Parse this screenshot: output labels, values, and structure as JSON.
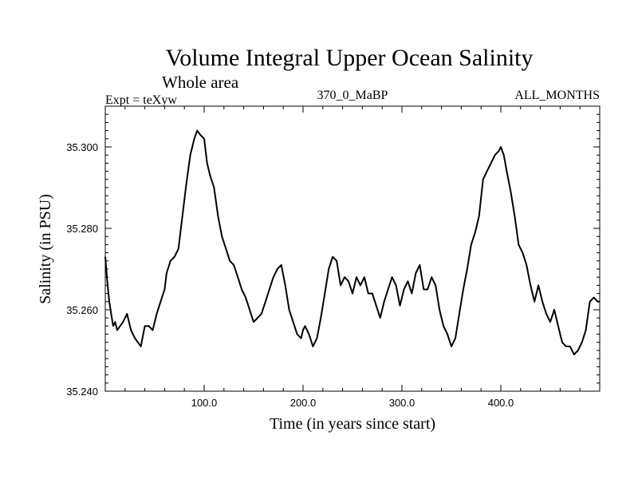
{
  "chart_data": {
    "type": "line",
    "title": "Volume Integral Upper Ocean Salinity",
    "subtitle": "Whole area",
    "left_note": "Expt = teXyw",
    "center_note": "370_0_MaBP",
    "right_note": "ALL_MONTHS",
    "xlabel": "Time (in years since start)",
    "ylabel": "Salinity (in PSU)",
    "xlim": [
      0,
      500
    ],
    "ylim": [
      35.24,
      35.31
    ],
    "xticks": [
      {
        "value": 100,
        "label": "100.0"
      },
      {
        "value": 200,
        "label": "200.0"
      },
      {
        "value": 300,
        "label": "300.0"
      },
      {
        "value": 400,
        "label": "400.0"
      }
    ],
    "yticks": [
      {
        "value": 35.24,
        "label": "35.240"
      },
      {
        "value": 35.26,
        "label": "35.260"
      },
      {
        "value": 35.28,
        "label": "35.280"
      },
      {
        "value": 35.3,
        "label": "35.300"
      }
    ],
    "grid": false,
    "series": [
      {
        "color": "#000000",
        "x": [
          0,
          2,
          4,
          6,
          8,
          10,
          12,
          15,
          18,
          22,
          26,
          30,
          33,
          36,
          40,
          44,
          48,
          52,
          56,
          60,
          62,
          66,
          70,
          74,
          78,
          82,
          86,
          90,
          93,
          96,
          100,
          103,
          106,
          110,
          114,
          118,
          122,
          126,
          130,
          134,
          138,
          142,
          146,
          150,
          154,
          158,
          162,
          166,
          170,
          174,
          178,
          182,
          186,
          190,
          194,
          198,
          200,
          202,
          206,
          210,
          214,
          218,
          222,
          226,
          230,
          234,
          238,
          242,
          246,
          250,
          254,
          258,
          262,
          266,
          270,
          274,
          278,
          282,
          286,
          290,
          294,
          298,
          302,
          306,
          310,
          314,
          318,
          322,
          326,
          330,
          334,
          338,
          342,
          346,
          350,
          354,
          358,
          362,
          366,
          370,
          374,
          378,
          382,
          386,
          390,
          394,
          398,
          400,
          403,
          406,
          410,
          414,
          418,
          422,
          426,
          430,
          434,
          438,
          442,
          446,
          450,
          454,
          458,
          462,
          466,
          470,
          474,
          478,
          482,
          486,
          490,
          494,
          498,
          500
        ],
        "y": [
          35.273,
          35.267,
          35.262,
          35.259,
          35.256,
          35.257,
          35.255,
          35.256,
          35.257,
          35.259,
          35.255,
          35.253,
          35.252,
          35.251,
          35.256,
          35.256,
          35.255,
          35.259,
          35.262,
          35.265,
          35.269,
          35.272,
          35.273,
          35.275,
          35.283,
          35.291,
          35.298,
          35.302,
          35.304,
          35.303,
          35.302,
          35.296,
          35.293,
          35.29,
          35.283,
          35.278,
          35.275,
          35.272,
          35.271,
          35.268,
          35.265,
          35.263,
          35.26,
          35.257,
          35.258,
          35.259,
          35.262,
          35.265,
          35.268,
          35.27,
          35.271,
          35.266,
          35.26,
          35.257,
          35.254,
          35.253,
          35.255,
          35.256,
          35.254,
          35.251,
          35.253,
          35.258,
          35.264,
          35.27,
          35.273,
          35.272,
          35.266,
          35.268,
          35.267,
          35.264,
          35.268,
          35.266,
          35.268,
          35.264,
          35.264,
          35.261,
          35.258,
          35.262,
          35.265,
          35.268,
          35.266,
          35.261,
          35.265,
          35.267,
          35.264,
          35.269,
          35.271,
          35.265,
          35.265,
          35.268,
          35.266,
          35.26,
          35.256,
          35.254,
          35.251,
          35.253,
          35.259,
          35.265,
          35.27,
          35.276,
          35.279,
          35.283,
          35.292,
          35.294,
          35.296,
          35.298,
          35.299,
          35.3,
          35.298,
          35.294,
          35.289,
          35.283,
          35.276,
          35.274,
          35.271,
          35.266,
          35.262,
          35.266,
          35.262,
          35.259,
          35.257,
          35.26,
          35.256,
          35.252,
          35.251,
          35.251,
          35.249,
          35.25,
          35.252,
          35.255,
          35.262,
          35.263,
          35.262,
          35.262
        ]
      }
    ]
  }
}
